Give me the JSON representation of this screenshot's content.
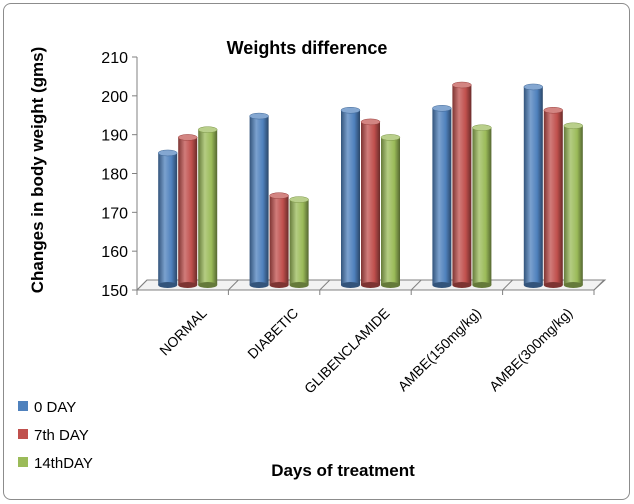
{
  "chart_data": {
    "type": "bar",
    "title": "Weights difference",
    "xlabel": "Days of treatment",
    "ylabel": "Changes in body weight (gms)",
    "ylim": [
      150,
      210
    ],
    "yticks": [
      150,
      160,
      170,
      180,
      190,
      200,
      210
    ],
    "categories": [
      "NORMAL",
      "DIABETIC",
      "GLIBENCLAMIDE",
      "AMBE(150mg/kg)",
      "AMBE(300mg/kg)"
    ],
    "series": [
      {
        "name": "0 DAY",
        "color": "#4f81bd",
        "values": [
          184,
          193.5,
          195,
          195.5,
          201
        ]
      },
      {
        "name": "7th DAY",
        "color": "#c0504d",
        "values": [
          188,
          173,
          192,
          201.5,
          195
        ]
      },
      {
        "name": "14thDAY",
        "color": "#9bbb59",
        "values": [
          190,
          172,
          188,
          190.5,
          191
        ]
      }
    ],
    "legend_position": "bottom-left",
    "grid": false
  }
}
